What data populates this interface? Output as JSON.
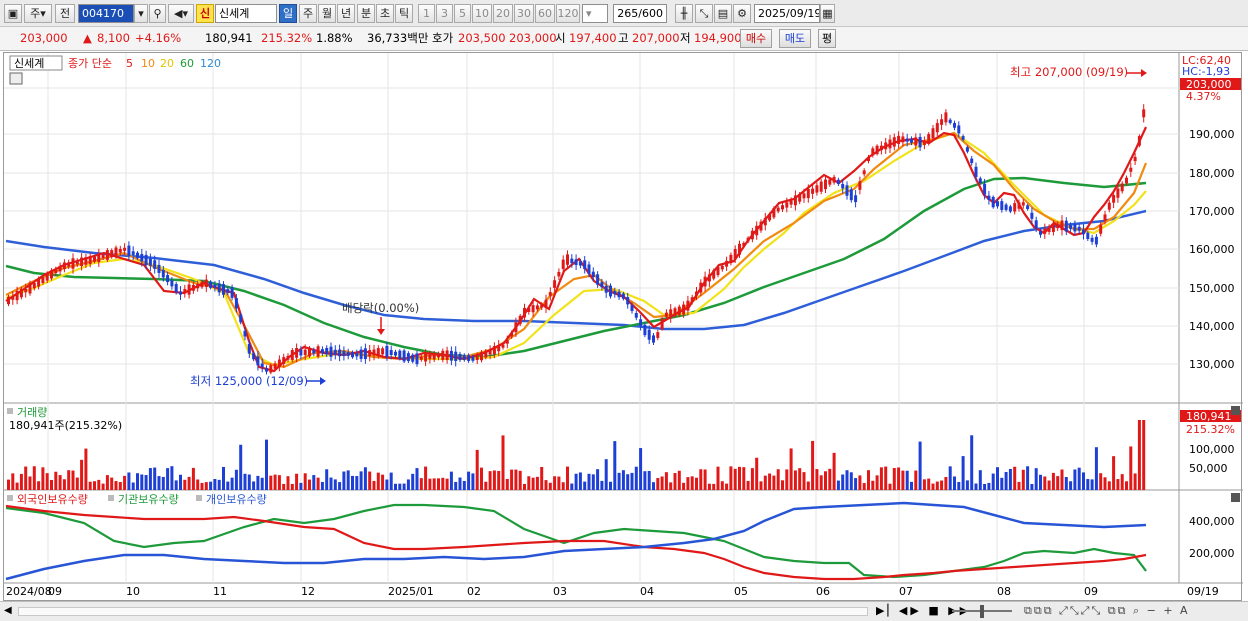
{
  "toolbar": {
    "main_btn": "주",
    "prev_btn": "전",
    "code": "004170",
    "shin_badge": "신",
    "stock_name": "신세계",
    "periods": [
      "일",
      "주",
      "월",
      "년",
      "분",
      "초",
      "틱"
    ],
    "active_period": "일",
    "numbers": [
      "1",
      "3",
      "5",
      "10",
      "20",
      "30",
      "60",
      "120"
    ],
    "count": "265",
    "count_total": "/600",
    "date": "2025/09/19"
  },
  "quote": {
    "price": "203,000",
    "change": "8,100",
    "change_pct": "+4.16%",
    "volume": "180,941",
    "volume_ratio": "215.32%",
    "turnover": "1.88%",
    "amount": "36,733백만",
    "bid_label": "호가",
    "bid_ask": "203,500",
    "bid_bid": "203,000",
    "open_label": "시",
    "open": "197,400",
    "high_label": "고",
    "high": "207,000",
    "low_label": "저",
    "low": "194,900",
    "buy_btn": "매수",
    "sell_btn": "매도",
    "eval_btn": "평"
  },
  "legend": {
    "stock": "신세계",
    "close_label": "종가 단순",
    "ma": [
      {
        "label": "5",
        "color": "#e01818"
      },
      {
        "label": "10",
        "color": "#f08a10"
      },
      {
        "label": "20",
        "color": "#e6d600"
      },
      {
        "label": "60",
        "color": "#1d9a3a"
      },
      {
        "label": "120",
        "color": "#2f8bd6"
      }
    ]
  },
  "price_panel": {
    "lc": "LC:62,40",
    "hc": "HC:-1,93",
    "current_tag": "203,000",
    "current_pct": "4.37%",
    "yticks": [
      "190,000",
      "180,000",
      "170,000",
      "160,000",
      "150,000",
      "140,000",
      "130,000"
    ],
    "high_note": "최고 207,000 (09/19)",
    "low_note": "최저 125,000 (12/09)",
    "div_note": "배당락(0.00%)"
  },
  "volume_panel": {
    "title": "거래량",
    "info": "180,941주(215.32%)",
    "tag": "180,941",
    "tag_pct": "215.32%",
    "yticks": [
      "100,000",
      "50,000"
    ]
  },
  "holding_panel": {
    "legend": [
      "외국인보유수량",
      "기관보유수량",
      "개인보유수량"
    ],
    "colors": [
      "#e01818",
      "#1d9a3a",
      "#2855d6"
    ],
    "yticks": [
      "400,000",
      "200,000"
    ]
  },
  "xaxis": {
    "labels": [
      "2024/08",
      "09",
      "10",
      "11",
      "12",
      "2025/01",
      "02",
      "03",
      "04",
      "05",
      "06",
      "07",
      "08",
      "09"
    ],
    "end": "09/19"
  },
  "chart_data": {
    "type": "candlestick",
    "title": "신세계",
    "x_range": [
      "2024/08",
      "2025/09/19"
    ],
    "y_range": [
      125000,
      207000
    ],
    "high": {
      "value": 207000,
      "date": "09/19"
    },
    "low": {
      "value": 125000,
      "date": "12/09"
    },
    "last_close": 203000,
    "moving_averages": [
      "5",
      "10",
      "20",
      "60",
      "120"
    ],
    "volume_last": 180941
  }
}
